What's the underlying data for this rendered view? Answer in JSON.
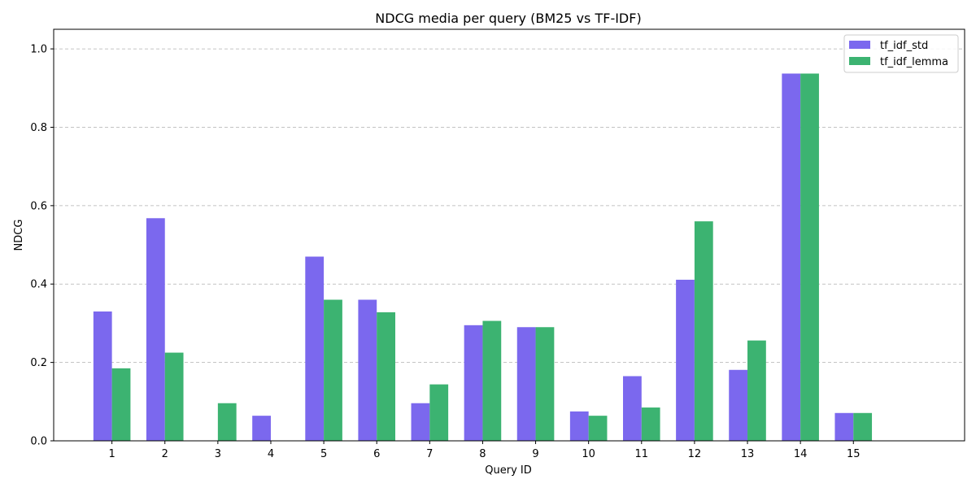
{
  "chart_data": {
    "type": "bar",
    "title": "NDCG media per query (BM25 vs TF-IDF)",
    "xlabel": "Query ID",
    "ylabel": "NDCG",
    "categories": [
      "1",
      "2",
      "3",
      "4",
      "5",
      "6",
      "7",
      "8",
      "9",
      "10",
      "11",
      "12",
      "13",
      "14",
      "15"
    ],
    "series": [
      {
        "name": "tf_idf_std",
        "color": "#7b68ee",
        "values": [
          0.33,
          0.568,
          0.0,
          0.064,
          0.47,
          0.36,
          0.096,
          0.295,
          0.29,
          0.075,
          0.165,
          0.411,
          0.181,
          0.937,
          0.071
        ]
      },
      {
        "name": "tf_idf_lemma",
        "color": "#3cb371",
        "values": [
          0.185,
          0.225,
          0.096,
          0.0,
          0.36,
          0.328,
          0.144,
          0.306,
          0.29,
          0.064,
          0.085,
          0.56,
          0.256,
          0.937,
          0.071
        ]
      }
    ],
    "ylim": [
      0,
      1.05
    ],
    "yticks": [
      "0.0",
      "0.2",
      "0.4",
      "0.6",
      "0.8",
      "1.0"
    ],
    "grid": "y-dashed",
    "legend_position": "top-right"
  }
}
